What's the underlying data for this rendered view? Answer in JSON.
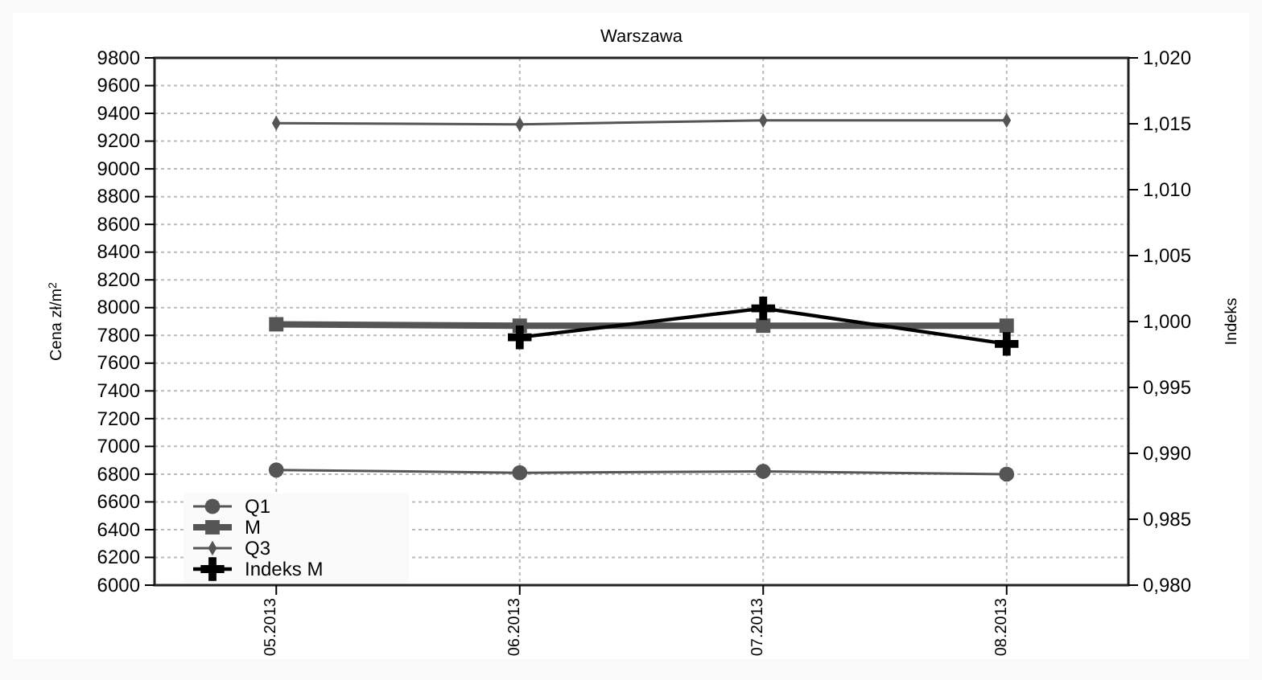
{
  "chart_data": {
    "type": "line",
    "title": "Warszawa",
    "ylabel": "Cena zł/m$^{2}$",
    "y2label": "Indeks",
    "categories": [
      "05.2013",
      "06.2013",
      "07.2013",
      "08.2013"
    ],
    "series": [
      {
        "name": "Q1",
        "color": "#555555",
        "values": [
          6830,
          6810,
          6820,
          6800
        ],
        "marker": "circle"
      },
      {
        "name": "M",
        "color": "#555555",
        "values": [
          7880,
          7870,
          7870,
          7870
        ],
        "marker": "square"
      },
      {
        "name": "Q3",
        "color": "#555555",
        "values": [
          9330,
          9320,
          9350,
          9350
        ],
        "marker": "diamond"
      },
      {
        "name": "Indeks M",
        "color": "#000000",
        "values": [
          null,
          0.9988,
          1.001,
          0.9983
        ],
        "marker": "cross",
        "axis": "y2"
      }
    ],
    "ylim": [
      6000,
      9800
    ],
    "yticks": [
      6000,
      6200,
      6400,
      6600,
      6800,
      7000,
      7200,
      7400,
      7600,
      7800,
      8000,
      8200,
      8400,
      8600,
      8800,
      9000,
      9200,
      9400,
      9600,
      9800
    ],
    "y2lim": [
      0.98,
      1.02
    ],
    "y2ticks": [
      {
        "value": 0.98,
        "label": "0,980"
      },
      {
        "value": 0.985,
        "label": "0,985"
      },
      {
        "value": 0.99,
        "label": "0,990"
      },
      {
        "value": 0.995,
        "label": "0,995"
      },
      {
        "value": 1.0,
        "label": "1,000"
      },
      {
        "value": 1.005,
        "label": "1,005"
      },
      {
        "value": 1.01,
        "label": "1,010"
      },
      {
        "value": 1.015,
        "label": "1,015"
      },
      {
        "value": 1.02,
        "label": "1,020"
      }
    ],
    "grid": true,
    "legend": "bottom left",
    "line_style": "solid"
  }
}
